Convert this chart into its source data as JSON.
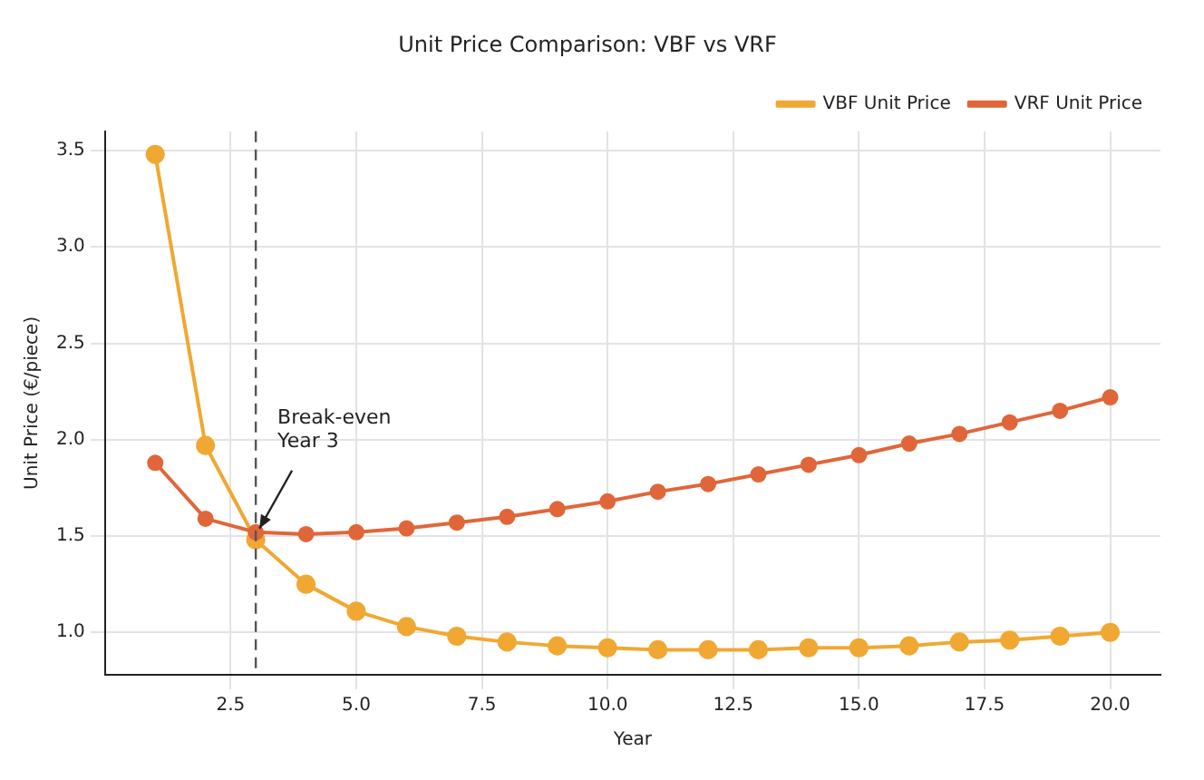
{
  "chart_data": {
    "type": "line",
    "title": "Unit Price Comparison: VBF vs VRF",
    "xlabel": "Year",
    "ylabel": "Unit Price (€/piece)",
    "x": [
      1,
      2,
      3,
      4,
      5,
      6,
      7,
      8,
      9,
      10,
      11,
      12,
      13,
      14,
      15,
      16,
      17,
      18,
      19,
      20
    ],
    "series": [
      {
        "name": "VBF Unit Price",
        "color": "#f0a832",
        "values": [
          3.48,
          1.97,
          1.48,
          1.25,
          1.11,
          1.03,
          0.98,
          0.95,
          0.93,
          0.92,
          0.91,
          0.91,
          0.91,
          0.92,
          0.92,
          0.93,
          0.95,
          0.96,
          0.98,
          1.0
        ]
      },
      {
        "name": "VRF Unit Price",
        "color": "#e0663a",
        "values": [
          1.88,
          1.59,
          1.52,
          1.51,
          1.52,
          1.54,
          1.57,
          1.6,
          1.64,
          1.68,
          1.73,
          1.77,
          1.82,
          1.87,
          1.92,
          1.98,
          2.03,
          2.09,
          2.15,
          2.22
        ]
      }
    ],
    "xlim": [
      0,
      21
    ],
    "xticks": [
      {
        "value": 2.5,
        "label": "2.5"
      },
      {
        "value": 5,
        "label": "5.0"
      },
      {
        "value": 7.5,
        "label": "7.5"
      },
      {
        "value": 10,
        "label": "10.0"
      },
      {
        "value": 12.5,
        "label": "12.5"
      },
      {
        "value": 15,
        "label": "15.0"
      },
      {
        "value": 17.5,
        "label": "17.5"
      },
      {
        "value": 20,
        "label": "20.0"
      }
    ],
    "ylim": [
      0.78,
      3.6
    ],
    "yticks": [
      {
        "value": 1,
        "label": "1.0"
      },
      {
        "value": 1.5,
        "label": "1.5"
      },
      {
        "value": 2,
        "label": "2.0"
      },
      {
        "value": 2.5,
        "label": "2.5"
      },
      {
        "value": 3,
        "label": "3.0"
      },
      {
        "value": 3.5,
        "label": "3.5"
      }
    ],
    "ref_lines": [
      {
        "axis": "x",
        "value": 3,
        "color": "#555555",
        "line_style": "dashed"
      }
    ],
    "annotations": [
      {
        "text": "Break-even\nYear 3",
        "x": 3,
        "y": 1.52
      }
    ],
    "grid": true,
    "legend": "top right",
    "marker": "circle",
    "line_style": "solid"
  }
}
